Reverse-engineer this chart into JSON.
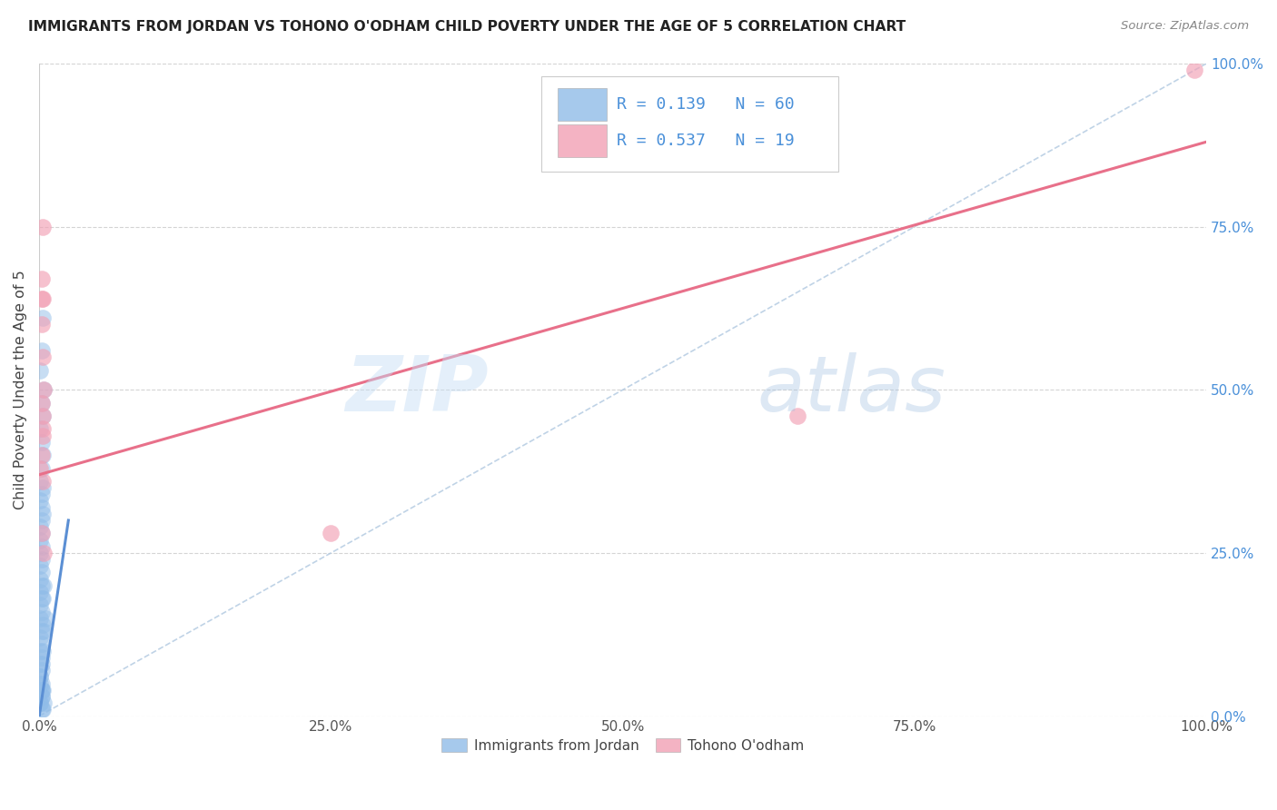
{
  "title": "IMMIGRANTS FROM JORDAN VS TOHONO O'ODHAM CHILD POVERTY UNDER THE AGE OF 5 CORRELATION CHART",
  "source": "Source: ZipAtlas.com",
  "ylabel": "Child Poverty Under the Age of 5",
  "xlim": [
    0,
    1
  ],
  "ylim": [
    0,
    1
  ],
  "xtick_labels": [
    "0.0%",
    "25.0%",
    "50.0%",
    "75.0%",
    "100.0%"
  ],
  "xtick_positions": [
    0,
    0.25,
    0.5,
    0.75,
    1.0
  ],
  "ytick_labels_right": [
    "100.0%",
    "75.0%",
    "50.0%",
    "25.0%",
    "0.0%"
  ],
  "ytick_positions": [
    1.0,
    0.75,
    0.5,
    0.25,
    0.0
  ],
  "legend_label_blue": "Immigrants from Jordan",
  "legend_label_pink": "Tohono O'odham",
  "R_blue": 0.139,
  "N_blue": 60,
  "R_pink": 0.537,
  "N_pink": 19,
  "blue_scatter_x": [
    0.003,
    0.002,
    0.001,
    0.004,
    0.002,
    0.003,
    0.001,
    0.002,
    0.003,
    0.002,
    0.001,
    0.003,
    0.002,
    0.001,
    0.002,
    0.003,
    0.002,
    0.001,
    0.002,
    0.001,
    0.002,
    0.001,
    0.002,
    0.001,
    0.002,
    0.001,
    0.002,
    0.001,
    0.002,
    0.001,
    0.002,
    0.001,
    0.003,
    0.002,
    0.001,
    0.002,
    0.001,
    0.002,
    0.001,
    0.002,
    0.001,
    0.002,
    0.003,
    0.002,
    0.001,
    0.002,
    0.001,
    0.002,
    0.001,
    0.002,
    0.004,
    0.003,
    0.005,
    0.004,
    0.003,
    0.002,
    0.001,
    0.002,
    0.004,
    0.003
  ],
  "blue_scatter_y": [
    0.61,
    0.56,
    0.53,
    0.5,
    0.48,
    0.46,
    0.44,
    0.42,
    0.4,
    0.38,
    0.36,
    0.35,
    0.34,
    0.33,
    0.32,
    0.31,
    0.3,
    0.29,
    0.28,
    0.27,
    0.26,
    0.25,
    0.24,
    0.23,
    0.22,
    0.21,
    0.2,
    0.19,
    0.18,
    0.17,
    0.16,
    0.15,
    0.14,
    0.13,
    0.12,
    0.11,
    0.1,
    0.09,
    0.08,
    0.07,
    0.06,
    0.05,
    0.04,
    0.03,
    0.02,
    0.01,
    0.05,
    0.03,
    0.02,
    0.04,
    0.2,
    0.18,
    0.15,
    0.13,
    0.1,
    0.08,
    0.06,
    0.04,
    0.02,
    0.01
  ],
  "pink_scatter_x": [
    0.002,
    0.003,
    0.002,
    0.003,
    0.004,
    0.002,
    0.003,
    0.003,
    0.002,
    0.001,
    0.003,
    0.002,
    0.25,
    0.004,
    0.65,
    0.99,
    0.003,
    0.002,
    0.003
  ],
  "pink_scatter_y": [
    0.67,
    0.64,
    0.6,
    0.55,
    0.5,
    0.48,
    0.46,
    0.43,
    0.4,
    0.38,
    0.36,
    0.28,
    0.28,
    0.25,
    0.46,
    0.99,
    0.44,
    0.64,
    0.75
  ],
  "blue_line_x": [
    0.0,
    0.025
  ],
  "blue_line_y": [
    0.0,
    0.3
  ],
  "dash_line_x": [
    0.0,
    1.0
  ],
  "dash_line_y": [
    0.0,
    1.0
  ],
  "pink_line_x": [
    0.0,
    1.0
  ],
  "pink_line_y": [
    0.37,
    0.88
  ],
  "blue_line_color": "#5b8fd4",
  "pink_line_color": "#e8708a",
  "blue_scatter_color": "#90bce8",
  "pink_scatter_color": "#f2a0b5",
  "dash_line_color": "#b0c8e0",
  "grid_color": "#d0d0d0",
  "watermark_zip": "ZIP",
  "watermark_atlas": "atlas",
  "background_color": "#ffffff",
  "title_color": "#222222",
  "source_color": "#888888",
  "tick_color_right": "#4a90d9",
  "tick_color_bottom": "#555555"
}
